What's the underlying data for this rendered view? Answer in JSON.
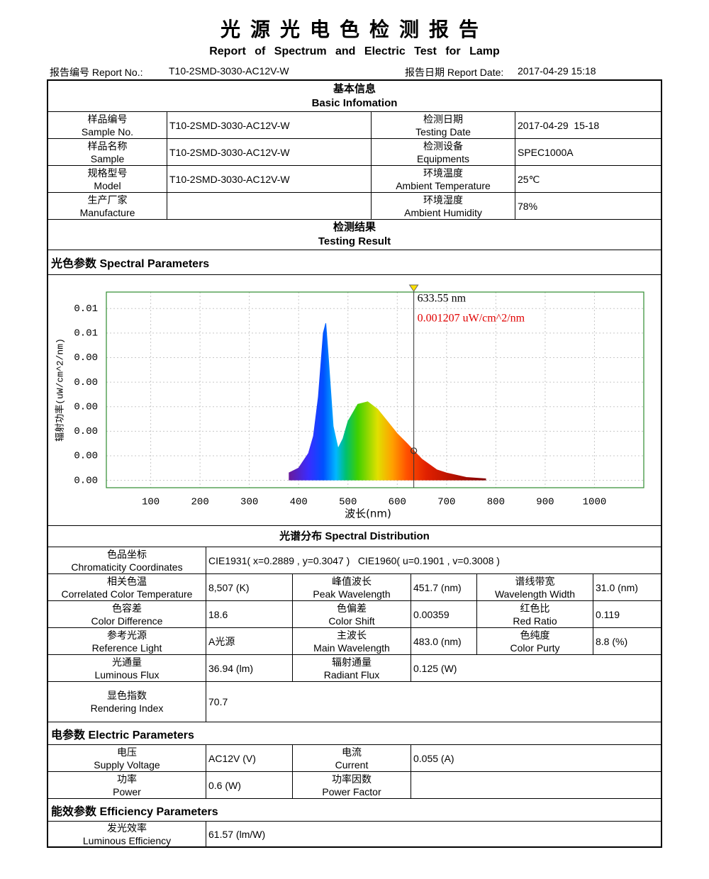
{
  "header": {
    "title": "光源光电色检测报告",
    "subtitle": "Report of Spectrum and Electric Test for Lamp",
    "report_no_label": "报告编号 Report No.:",
    "report_no": "T10-2SMD-3030-AC12V-W",
    "report_date_label": "报告日期 Report Date:",
    "report_date": "2017-04-29 15:18"
  },
  "basic_info": {
    "title": [
      "基本信息",
      "Basic Infomation"
    ],
    "rows": [
      [
        [
          "样品编号",
          "Sample No."
        ],
        [
          "T10-2SMD-3030-AC12V-W"
        ],
        [
          "检测日期",
          "Testing Date"
        ],
        [
          "2017-04-29  15-18"
        ]
      ],
      [
        [
          "样品名称",
          "Sample"
        ],
        [
          "T10-2SMD-3030-AC12V-W"
        ],
        [
          "检测设备",
          "Equipments"
        ],
        [
          "SPEC1000A"
        ]
      ],
      [
        [
          "规格型号",
          "Model"
        ],
        [
          "T10-2SMD-3030-AC12V-W"
        ],
        [
          "环境温度",
          "Ambient Temperature"
        ],
        [
          "25℃"
        ]
      ],
      [
        [
          "生产厂家",
          "Manufacture"
        ],
        null,
        [
          "环境湿度",
          "Ambient Humidity"
        ],
        [
          "78%"
        ]
      ]
    ]
  },
  "testing_result": {
    "title": [
      "检测结果",
      "Testing Result"
    ]
  },
  "spectral_parameters": {
    "heading": "光色参数 Spectral Parameters",
    "chart_caption": "光谱分布 Spectral Distribution",
    "rows": [
      [
        [
          "色品坐标",
          "Chromaticity Coordinates"
        ],
        [
          "CIE1931( x=0.2889 , y=0.3047 )   CIE1960( u=0.1901 , v=0.3008 )"
        ]
      ],
      [
        [
          "相关色温",
          "Correlated Color Temperature"
        ],
        [
          "8,507 (K)"
        ],
        [
          "峰值波长",
          "Peak Wavelength"
        ],
        [
          "451.7 (nm)"
        ],
        [
          "谱线带宽",
          "Wavelength Width"
        ],
        [
          "31.0 (nm)"
        ]
      ],
      [
        [
          "色容差",
          "Color Difference"
        ],
        [
          "18.6"
        ],
        [
          "色偏差",
          "Color Shift"
        ],
        [
          "0.00359"
        ],
        [
          "红色比",
          "Red Ratio"
        ],
        [
          "0.119"
        ]
      ],
      [
        [
          "参考光源",
          "Reference Light"
        ],
        [
          "A光源"
        ],
        [
          "主波长",
          "Main Wavelength"
        ],
        [
          "483.0 (nm)"
        ],
        [
          "色纯度",
          "Color Purty"
        ],
        [
          "8.8 (%)"
        ]
      ],
      [
        [
          "光通量",
          "Luminous Flux"
        ],
        [
          "36.94 (lm)"
        ],
        [
          "辐射通量",
          "Radiant Flux"
        ],
        [
          "0.125 (W)"
        ]
      ],
      [
        [
          "显色指数",
          "Rendering Index"
        ],
        [
          "70.7"
        ]
      ]
    ]
  },
  "chart_data": {
    "type": "area",
    "x_label": "波长(nm)",
    "y_label": "辐射功率(uW/cm^2/nm)",
    "series": [
      {
        "name": "spectrum",
        "x": [
          380,
          400,
          420,
          430,
          440,
          450,
          455,
          460,
          470,
          480,
          490,
          500,
          520,
          540,
          560,
          580,
          600,
          620,
          633.55,
          650,
          680,
          700,
          740,
          780
        ],
        "values": [
          0.0003,
          0.0005,
          0.0011,
          0.0018,
          0.0034,
          0.006,
          0.0064,
          0.0051,
          0.0022,
          0.0013,
          0.0017,
          0.0024,
          0.0031,
          0.0032,
          0.0029,
          0.0024,
          0.0019,
          0.0015,
          0.001207,
          0.00086,
          0.00043,
          0.0003,
          0.00012,
          6e-05
        ]
      }
    ],
    "xlim": [
      10,
      1100
    ],
    "xticks": [
      100,
      200,
      300,
      400,
      500,
      600,
      700,
      800,
      900,
      1000
    ],
    "ylim": [
      -0.0003,
      0.00767
    ],
    "yticks": [
      {
        "value": 0,
        "label": "0.00"
      },
      {
        "value": 0.001,
        "label": "0.00"
      },
      {
        "value": 0.002,
        "label": "0.00"
      },
      {
        "value": 0.003,
        "label": "0.00"
      },
      {
        "value": 0.004,
        "label": "0.00"
      },
      {
        "value": 0.005,
        "label": "0.00"
      },
      {
        "value": 0.006,
        "label": "0.01"
      },
      {
        "value": 0.007,
        "label": "0.01"
      }
    ],
    "grid": true,
    "cursor": {
      "x": 633.55,
      "label": "633.55 nm",
      "value": 0.001207,
      "value_label": "0.001207 uW/cm^2/nm"
    }
  },
  "electric_parameters": {
    "heading": "电参数 Electric Parameters",
    "rows": [
      [
        [
          "电压",
          "Supply Voltage"
        ],
        [
          "AC12V (V)"
        ],
        [
          "电流",
          "Current"
        ],
        [
          "0.055 (A)"
        ]
      ],
      [
        [
          "功率",
          "Power"
        ],
        [
          "0.6 (W)"
        ],
        [
          "功率因数",
          "Power Factor"
        ],
        null
      ]
    ]
  },
  "efficiency_parameters": {
    "heading": "能效参数 Efficiency Parameters",
    "rows": [
      [
        [
          "发光效率",
          "Luminous Efficiency"
        ],
        [
          "61.57 (lm/W)"
        ]
      ]
    ]
  }
}
